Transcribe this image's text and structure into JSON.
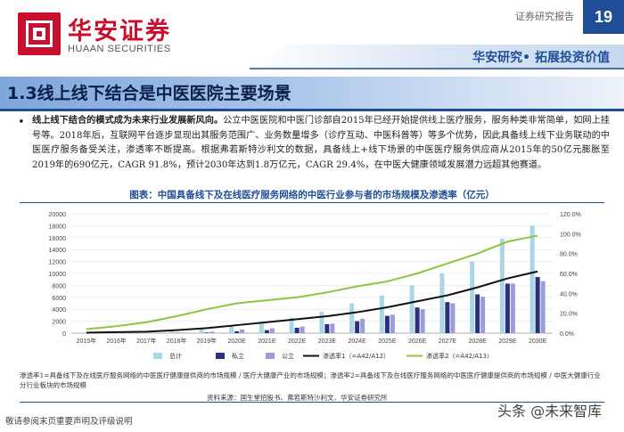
{
  "header": {
    "logo_cn": "华安证券",
    "logo_en": "HUAAN SECURITIES",
    "report_type": "证券研究报告",
    "page_number": "19",
    "slogan": "华安研究• 拓展投资价值"
  },
  "section": {
    "title": "1.3线上线下结合是中医医院主要场景"
  },
  "body": {
    "lead": "线上线下结合的模式成为未来行业发展新风向。",
    "text": "公立中医医院和中医门诊部自2015年已经开始提供线上医疗服务，服务种类非常简单，如网上挂号等。2018年后，互联网平台逐步显现出其服务范围广、业务数量增多（诊疗互动、中医科普等）等多个优势，因此具备线上线下业务联动的中医医疗服务备受关注，渗透率不断提高。根据弗若斯特沙利文的数据，具备线上+线下场景的中医医疗服务供应商从2015年的50亿元膨胀至2019年的690亿元，CAGR 91.8%，预计2030年达到1.8万亿元，CAGR 29.4%，在中医大健康领域发展潜力远超其他赛道。"
  },
  "figure": {
    "title": "图表：中国具备线下及在线医疗服务网络的中医行业参与者的市场规模及渗透率（亿元）",
    "note": "渗透率1=具备线下及在线医疗服务网络的中医医疗健康提供商的市场规模 / 医疗大健康产业的市场规模；渗透率2=具备线下及在线医疗服务网络的中医医疗健康提供商的市场规模 / 中医大健康行业分行业板块的市场规模",
    "source": "资料来源：国生堂招股书、弗若斯特沙利文、华安证券研究所"
  },
  "chart_data": {
    "type": "bar",
    "categories": [
      "2015年",
      "2016年",
      "2017年",
      "2018年",
      "2019年",
      "2020E",
      "2021E",
      "2022E",
      "2023E",
      "2024E",
      "2025E",
      "2026E",
      "2027E",
      "2028E",
      "2029E",
      "2030E"
    ],
    "series": [
      {
        "name": "总计",
        "kind": "bar",
        "color": "#a9d7e8",
        "values": [
          50,
          100,
          200,
          400,
          690,
          1300,
          1900,
          2600,
          3600,
          5000,
          6300,
          8000,
          10000,
          12000,
          15800,
          18000
        ]
      },
      {
        "name": "私立",
        "kind": "bar",
        "color": "#2a2f7e",
        "values": [
          0,
          0,
          0,
          50,
          100,
          300,
          500,
          900,
          1500,
          2000,
          2900,
          4300,
          5200,
          6500,
          8300,
          9400
        ]
      },
      {
        "name": "公立",
        "kind": "bar",
        "color": "#9b9ddb",
        "values": [
          0,
          0,
          0,
          100,
          250,
          600,
          800,
          1100,
          1600,
          2400,
          3100,
          4000,
          5000,
          6100,
          8300,
          8700
        ]
      },
      {
        "name": "渗透率1（=A42/A12）",
        "kind": "line",
        "axis": "right",
        "color": "#111111",
        "values": [
          0.5,
          1.0,
          1.5,
          3.0,
          5.0,
          8.0,
          11.0,
          14.0,
          17.0,
          21.0,
          26.0,
          32.0,
          38.0,
          46.0,
          55.0,
          62.0
        ]
      },
      {
        "name": "渗透率2（=A42/A13）",
        "kind": "line",
        "axis": "right",
        "color": "#8cc63f",
        "values": [
          4.0,
          7.0,
          11.0,
          17.0,
          24.0,
          30.0,
          33.0,
          36.0,
          41.0,
          47.0,
          52.0,
          60.0,
          70.0,
          80.0,
          92.0,
          98.0
        ]
      }
    ],
    "ylim": [
      0,
      20000
    ],
    "yticks": [
      0,
      2000,
      4000,
      6000,
      8000,
      10000,
      12000,
      14000,
      16000,
      18000,
      20000
    ],
    "y2lim": [
      0,
      120
    ],
    "y2ticks": [
      "0.0%",
      "20.0%",
      "40.0%",
      "60.0%",
      "80.0%",
      "100.0%",
      "120.0%"
    ],
    "legend_position": "bottom",
    "xlabel": "",
    "ylabel": ""
  },
  "footer": {
    "disclaimer": "敬请参阅末页重要声明及评级说明",
    "watermark": "头条 @未来智库"
  }
}
